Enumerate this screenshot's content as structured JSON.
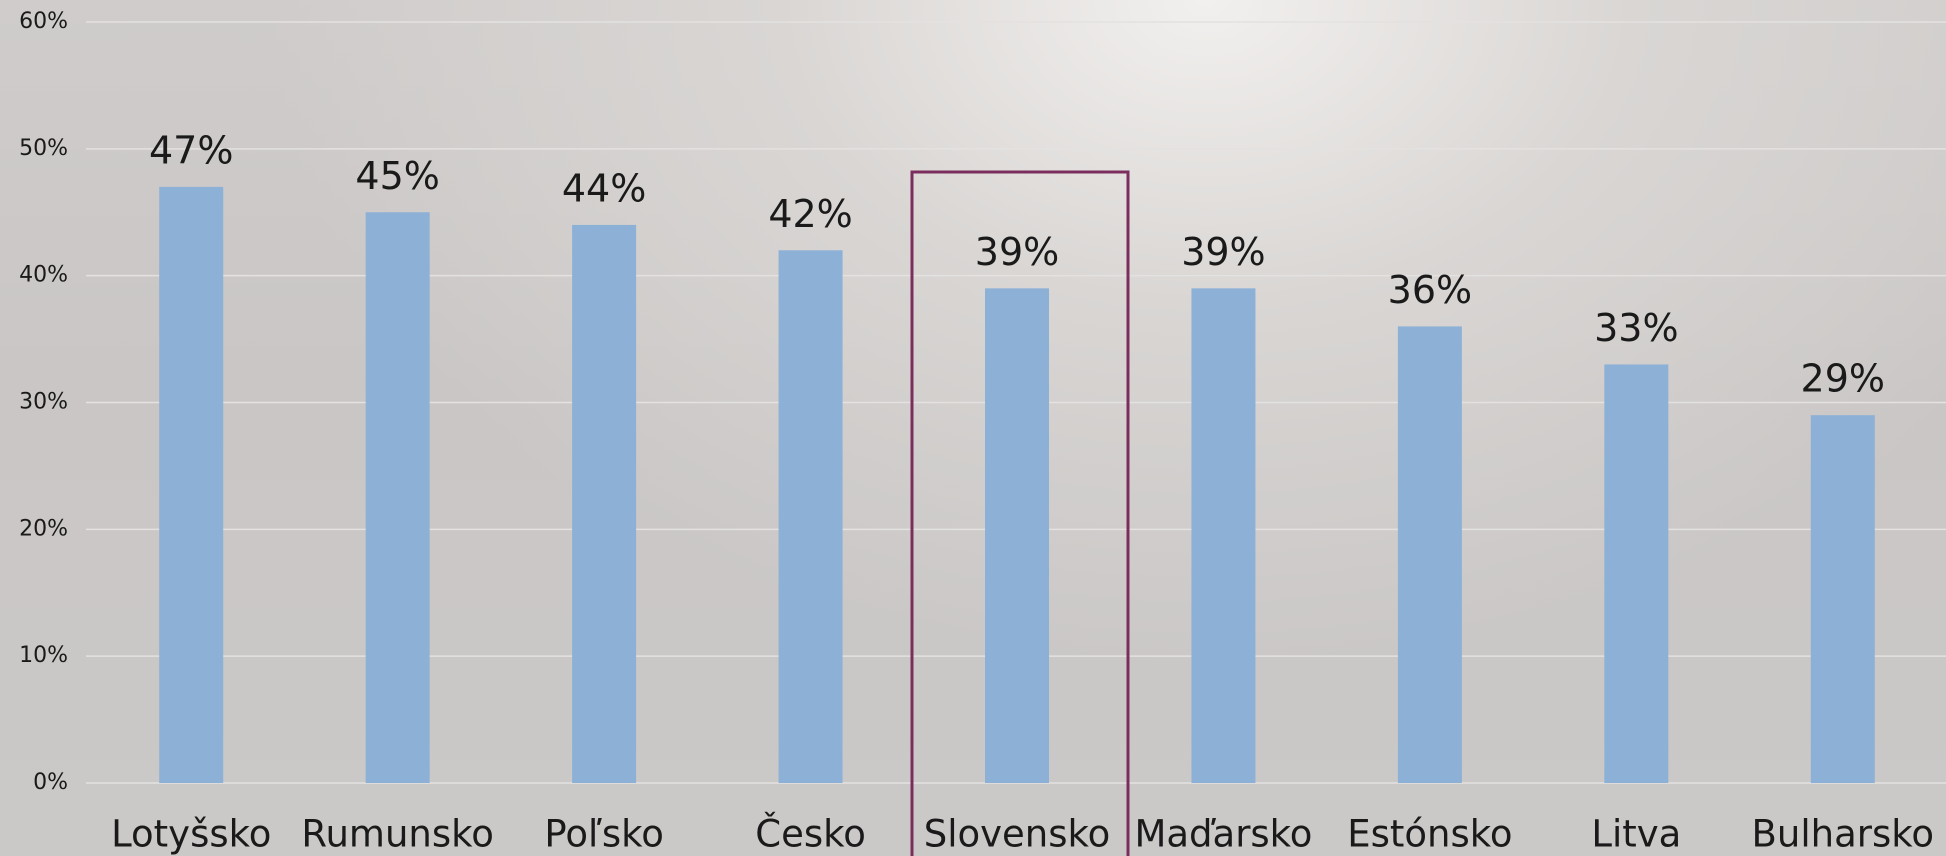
{
  "chart_data": {
    "type": "bar",
    "categories": [
      "Lotyšsko",
      "Rumunsko",
      "Poľsko",
      "Česko",
      "Slovensko",
      "Maďarsko",
      "Estónsko",
      "Litva",
      "Bulharsko"
    ],
    "values": [
      47,
      45,
      44,
      42,
      39,
      39,
      36,
      33,
      29
    ],
    "value_labels": [
      "47%",
      "45%",
      "44%",
      "42%",
      "39%",
      "39%",
      "36%",
      "33%",
      "29%"
    ],
    "color": "#8db0d6",
    "ylim": [
      0,
      60
    ],
    "yticks": [
      {
        "value": 0,
        "label": "0%"
      },
      {
        "value": 10,
        "label": "10%"
      },
      {
        "value": 20,
        "label": "20%"
      },
      {
        "value": 30,
        "label": "30%"
      },
      {
        "value": 40,
        "label": "40%"
      },
      {
        "value": 50,
        "label": "50%"
      },
      {
        "value": 60,
        "label": "60%"
      }
    ],
    "grid": true
  }
}
